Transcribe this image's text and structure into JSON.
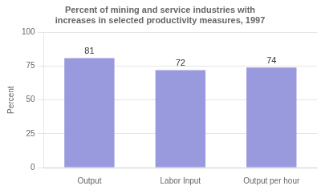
{
  "chart_data": {
    "type": "bar",
    "title": [
      "Percent of mining and service industries with",
      "increases in selected productivity measures, 1997"
    ],
    "ylabel": "Percent",
    "categories": [
      "Output",
      "Labor Input",
      "Output per hour"
    ],
    "values": [
      81,
      72,
      74
    ],
    "color": "#9999dd",
    "ylim": [
      0,
      100
    ],
    "yticks": [
      0,
      25,
      50,
      75,
      100
    ],
    "grid": true,
    "data_labels": true
  }
}
